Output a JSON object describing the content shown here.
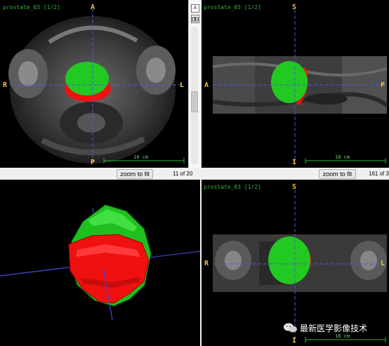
{
  "viewers": {
    "axial": {
      "label": "prostate_03 [1/2]",
      "orientation": {
        "top": "A",
        "bottom": "P",
        "left": "R",
        "right": "L"
      },
      "scale": "10 cm",
      "zoom_button": "zoom to fit",
      "slice": "11 of 20",
      "sidebar_icons": [
        "A",
        "camera"
      ]
    },
    "sagittal": {
      "label": "prostate_03 [1/2]",
      "orientation": {
        "top": "S",
        "bottom": "I",
        "left": "A",
        "right": "P"
      },
      "scale": "10 cm",
      "zoom_button": "zoom to fit",
      "slice": "161 of 3"
    },
    "render3d": {
      "segment_colors": {
        "green": "#22c922",
        "red": "#f01010"
      }
    },
    "coronal": {
      "label": "prostate_03 [1/2]",
      "orientation": {
        "top": "S",
        "bottom": "I",
        "left": "R",
        "right": "L"
      },
      "scale": "10 cm"
    }
  },
  "watermark": {
    "text": "最新医学影像技术",
    "icon": "wechat-icon"
  },
  "colors": {
    "label": "#38b538",
    "orientation": "#f2c23c",
    "crosshair": "#4a5bd6",
    "segment_green": "#22c922",
    "segment_red": "#f01010"
  }
}
